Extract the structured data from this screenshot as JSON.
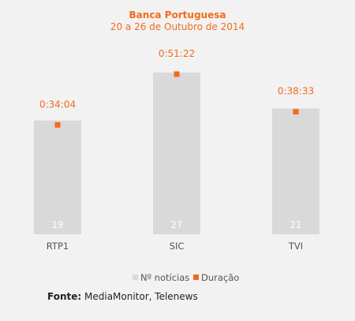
{
  "chart_data": {
    "type": "bar",
    "title": "Banca Portuguesa",
    "subtitle": "20 a 26 de Outubro de 2014",
    "categories": [
      "RTP1",
      "SIC",
      "TVI"
    ],
    "series": [
      {
        "name": "Nº notícias",
        "kind": "bar",
        "values": [
          19,
          27,
          21
        ],
        "color": "#d9d9d9"
      },
      {
        "name": "Duração",
        "kind": "marker",
        "values": [
          "0:34:04",
          "0:51:22",
          "0:38:33"
        ],
        "color": "#f26b1d"
      }
    ],
    "ylim_bars": [
      0,
      27
    ],
    "grid": false,
    "legend": "bottom"
  },
  "source": {
    "label": "Fonte:",
    "text": "MediaMonitor, Telenews"
  }
}
